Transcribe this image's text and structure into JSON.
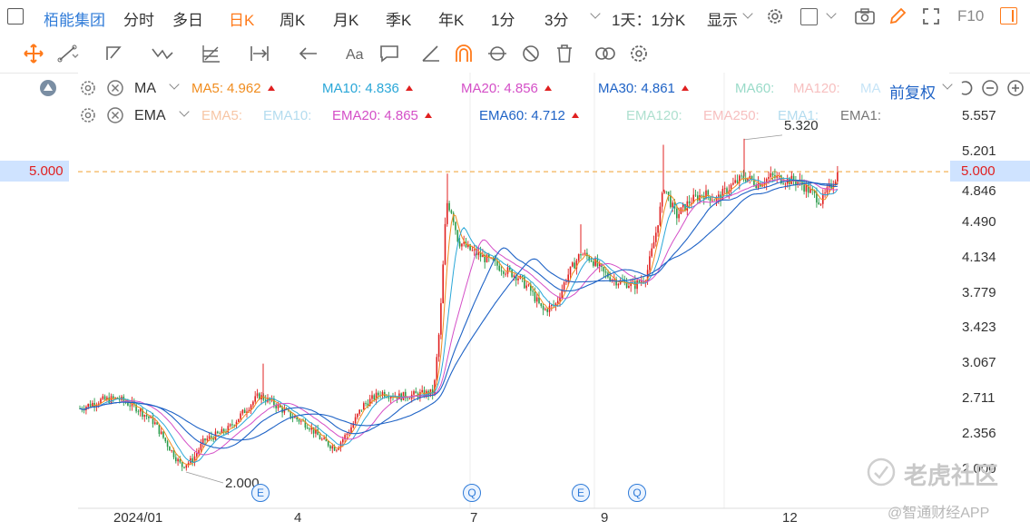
{
  "topbar": {
    "stock_name": "栢能集团",
    "periods": [
      {
        "label": "分时",
        "active": false
      },
      {
        "label": "多日",
        "active": false
      },
      {
        "label": "日K",
        "active": true
      },
      {
        "label": "周K",
        "active": false
      },
      {
        "label": "月K",
        "active": false
      },
      {
        "label": "季K",
        "active": false
      },
      {
        "label": "年K",
        "active": false
      },
      {
        "label": "1分",
        "active": false
      },
      {
        "label": "3分",
        "active": false
      }
    ],
    "range_label": "1天：1分K",
    "display_label": "显示",
    "f10_label": "F10"
  },
  "ma_row": {
    "type_label": "MA",
    "items": [
      {
        "label": "MA5:",
        "value": "4.962",
        "color": "#f08c1e",
        "arrow": true
      },
      {
        "label": "MA10:",
        "value": "4.836",
        "color": "#2aa7d8",
        "arrow": true
      },
      {
        "label": "MA20:",
        "value": "4.856",
        "color": "#d44fc7",
        "arrow": true
      },
      {
        "label": "MA30:",
        "value": "4.861",
        "color": "#1f63c6",
        "arrow": true
      },
      {
        "label": "MA60:",
        "value": "",
        "color": "#9adbc9",
        "arrow": false
      },
      {
        "label": "MA120:",
        "value": "",
        "color": "#f7c0c0",
        "arrow": false
      },
      {
        "label": "MA",
        "value": "",
        "color": "#c6e4f7",
        "arrow": false
      }
    ],
    "adjust_label": "前复权"
  },
  "ema_row": {
    "type_label": "EMA",
    "items": [
      {
        "label": "EMA5:",
        "value": "",
        "color": "#f7c6a5",
        "arrow": false
      },
      {
        "label": "EMA10:",
        "value": "",
        "color": "#b4dcef",
        "arrow": false
      },
      {
        "label": "EMA20:",
        "value": "4.865",
        "color": "#d44fc7",
        "arrow": true
      },
      {
        "label": "EMA60:",
        "value": "4.712",
        "color": "#1f63c6",
        "arrow": true
      },
      {
        "label": "EMA120:",
        "value": "",
        "color": "#aee0cf",
        "arrow": false
      },
      {
        "label": "EMA250:",
        "value": "",
        "color": "#f7c0c0",
        "arrow": false
      },
      {
        "label": "EMA1:",
        "value": "",
        "color": "#b4dcef",
        "arrow": false
      },
      {
        "label": "EMA1:",
        "value": "",
        "color": "#777777",
        "arrow": false
      }
    ]
  },
  "chart": {
    "y_ticks": [
      "5.557",
      "5.201",
      "4.846",
      "4.490",
      "4.134",
      "3.779",
      "3.423",
      "3.067",
      "2.711",
      "2.356",
      "2.000"
    ],
    "x_ticks": [
      "2024/01",
      "4",
      "7",
      "9",
      "12"
    ],
    "current_price": "5.000",
    "high_annotation": "5.320",
    "low_annotation": "2.000",
    "events": [
      "E",
      "Q",
      "E",
      "Q"
    ],
    "colors": {
      "up": "#e02020",
      "down": "#2a9a4a",
      "ref_line": "#f0a030"
    }
  },
  "chart_data": {
    "type": "candlestick",
    "x_ticks": [
      "2024/01",
      "4",
      "7",
      "9",
      "12"
    ],
    "y_range": [
      2.0,
      5.557
    ],
    "last_close": 5.0,
    "annotations": [
      {
        "text": "5.320",
        "label": "high"
      },
      {
        "text": "2.000",
        "label": "low"
      }
    ],
    "series": [
      {
        "name": "MA5",
        "last": 4.962
      },
      {
        "name": "MA10",
        "last": 4.836
      },
      {
        "name": "MA20",
        "last": 4.856
      },
      {
        "name": "MA30",
        "last": 4.861
      },
      {
        "name": "EMA20",
        "last": 4.865
      },
      {
        "name": "EMA60",
        "last": 4.712
      }
    ]
  },
  "watermark": {
    "main": "老虎社区",
    "sub": "@智通财经APP"
  }
}
